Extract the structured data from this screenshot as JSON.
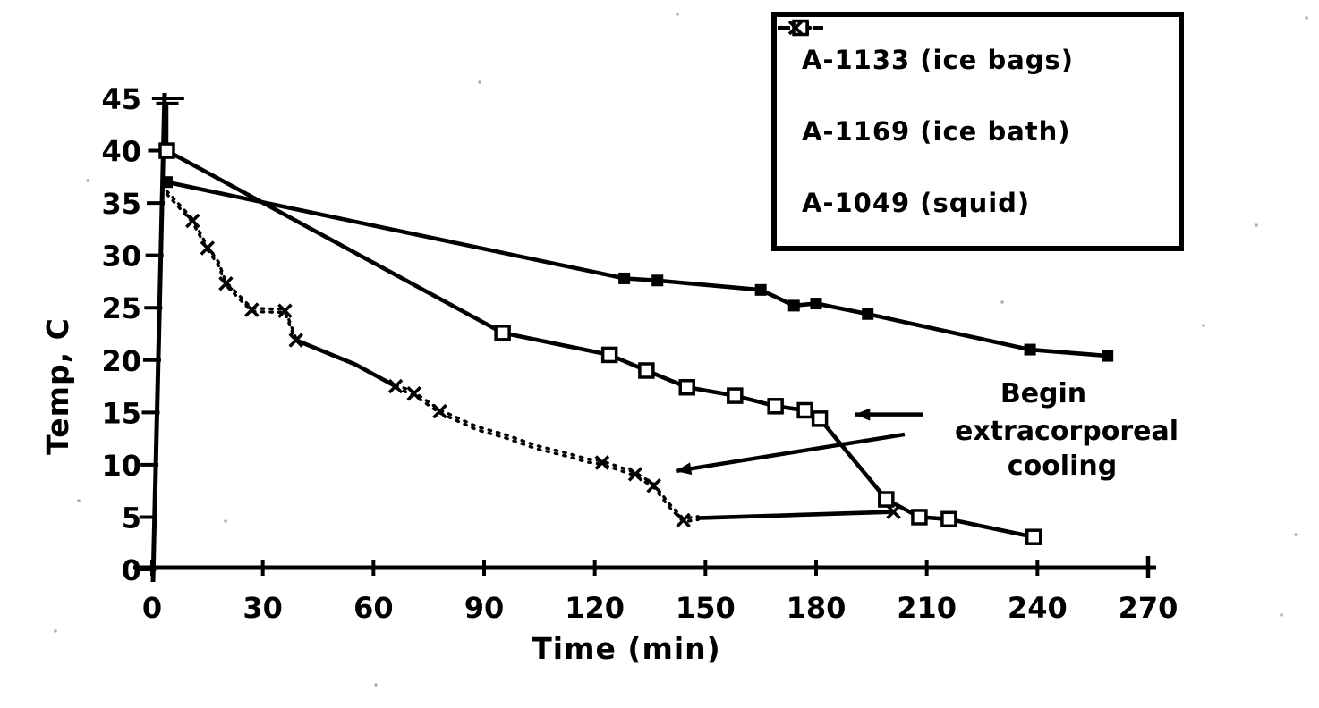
{
  "page": {
    "background": "#ffffff",
    "ink": "#000000"
  },
  "chart_data": {
    "type": "line",
    "title": "",
    "xlabel": "Time (min)",
    "ylabel": "Temp, C",
    "xlim": [
      0,
      270
    ],
    "ylim": [
      0,
      45
    ],
    "x_ticks": [
      0,
      30,
      60,
      90,
      120,
      150,
      180,
      210,
      240,
      270
    ],
    "y_ticks": [
      45,
      40,
      35,
      30,
      25,
      20,
      15,
      10,
      5,
      0
    ],
    "grid": false,
    "legend_position": "top-right",
    "series": [
      {
        "name": "A-1133 (ice bags)",
        "marker": "filled-square",
        "line": "solid",
        "points": [
          [
            4,
            37
          ],
          [
            128,
            27.8
          ],
          [
            137,
            27.6
          ],
          [
            165,
            26.7
          ],
          [
            174,
            25.2
          ],
          [
            180,
            25.4
          ],
          [
            194,
            24.4
          ],
          [
            238,
            21
          ],
          [
            259,
            20.4
          ]
        ]
      },
      {
        "name": "A-1169 (ice bath)",
        "marker": "open-square",
        "line": "solid",
        "error_bar": {
          "t": 4,
          "top": 44.5,
          "bottom": 40
        },
        "points": [
          [
            4,
            40
          ],
          [
            95,
            22.6
          ],
          [
            124,
            20.5
          ],
          [
            134,
            19
          ],
          [
            145,
            17.4
          ],
          [
            158,
            16.6
          ],
          [
            169,
            15.6
          ],
          [
            177,
            15.2
          ],
          [
            181,
            14.4
          ],
          [
            199,
            6.7
          ],
          [
            208,
            5
          ],
          [
            216,
            4.8
          ],
          [
            239,
            3.1
          ]
        ]
      },
      {
        "name": "A-1049 (squid)",
        "marker": "x",
        "line": "dotted",
        "points": [
          [
            4,
            36
          ],
          [
            11,
            33.3
          ],
          [
            15,
            30.7
          ],
          [
            18,
            29.2
          ],
          [
            20,
            27.3
          ],
          [
            27,
            24.8
          ],
          [
            36,
            24.7
          ],
          [
            39,
            21.9
          ],
          [
            55,
            19.6
          ],
          [
            66,
            17.5
          ],
          [
            71,
            16.8
          ],
          [
            78,
            15.1
          ],
          [
            88,
            13.5
          ],
          [
            96,
            12.7
          ],
          [
            104,
            11.7
          ],
          [
            112,
            11
          ],
          [
            118,
            10.4
          ],
          [
            122,
            10.2
          ],
          [
            131,
            9.1
          ],
          [
            136,
            8
          ],
          [
            140,
            6.2
          ],
          [
            144,
            4.7
          ],
          [
            148,
            4.9
          ],
          [
            201,
            5.5
          ]
        ],
        "segments": [
          {
            "to_t": 39,
            "style": "dotted"
          },
          {
            "to_t": 66,
            "style": "solid"
          },
          {
            "to_t": 148,
            "style": "dotted"
          },
          {
            "to_t": 201,
            "style": "solid"
          }
        ],
        "marker_points": [
          [
            11,
            33.3
          ],
          [
            15,
            30.7
          ],
          [
            20,
            27.3
          ],
          [
            27,
            24.8
          ],
          [
            36,
            24.7
          ],
          [
            39,
            21.9
          ],
          [
            66,
            17.5
          ],
          [
            71,
            16.8
          ],
          [
            78,
            15.1
          ],
          [
            122,
            10.2
          ],
          [
            131,
            9.1
          ],
          [
            136,
            8
          ],
          [
            144,
            4.7
          ],
          [
            201,
            5.5
          ]
        ]
      }
    ],
    "annotation": {
      "lines": [
        "Begin",
        "extracorporeal",
        "cooling"
      ],
      "pointers": [
        {
          "from_t": 204,
          "from_v": 12.9,
          "to_t": 142,
          "to_v": 9.4,
          "arrow": true
        },
        {
          "from_t": 209,
          "from_v": 14.8,
          "to_t": 190.5,
          "to_v": 14.8,
          "arrow": true
        }
      ]
    }
  },
  "legend": {
    "items": [
      {
        "label": "A-1133 (ice bags)",
        "marker": "filled-square"
      },
      {
        "label": "A-1169 (ice bath)",
        "marker": "open-square"
      },
      {
        "label": "A-1049 (squid)",
        "marker": "x"
      }
    ]
  }
}
